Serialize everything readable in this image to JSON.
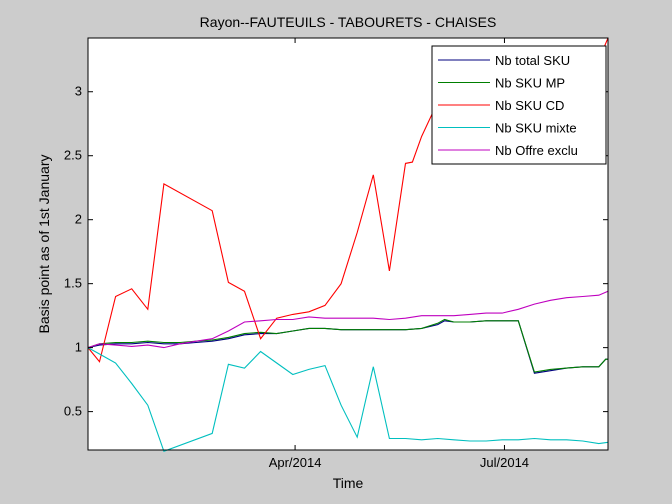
{
  "chart_data": {
    "type": "line",
    "title": "Rayon--FAUTEUILS - TABOURETS - CHAISES",
    "xlabel": "Time",
    "ylabel": "Basis point as of 1st January",
    "xlim": [
      "2014-01-01",
      "2014-08-15"
    ],
    "ylim": [
      0.2,
      3.42
    ],
    "y_ticks": [
      0.5,
      1,
      1.5,
      2,
      2.5,
      3
    ],
    "y_tick_labels": [
      "0.5",
      "1",
      "1.5",
      "2",
      "2.5",
      "3"
    ],
    "x_ticks": [
      "2014-04-01",
      "2014-07-01"
    ],
    "x_tick_labels": [
      "Apr/2014",
      "Jul/2014"
    ],
    "grid": false,
    "legend_position": "top-right",
    "series": [
      {
        "name": "Nb total SKU",
        "color": "#00007f",
        "points": [
          [
            "2014-01-01",
            1.0
          ],
          [
            "2014-01-06",
            1.02
          ],
          [
            "2014-01-13",
            1.03
          ],
          [
            "2014-01-20",
            1.03
          ],
          [
            "2014-01-27",
            1.04
          ],
          [
            "2014-02-03",
            1.03
          ],
          [
            "2014-02-10",
            1.03
          ],
          [
            "2014-02-17",
            1.04
          ],
          [
            "2014-02-24",
            1.05
          ],
          [
            "2014-03-03",
            1.07
          ],
          [
            "2014-03-10",
            1.1
          ],
          [
            "2014-03-17",
            1.11
          ],
          [
            "2014-03-24",
            1.11
          ],
          [
            "2014-03-31",
            1.13
          ],
          [
            "2014-04-07",
            1.15
          ],
          [
            "2014-04-14",
            1.15
          ],
          [
            "2014-04-21",
            1.14
          ],
          [
            "2014-04-28",
            1.14
          ],
          [
            "2014-05-05",
            1.14
          ],
          [
            "2014-05-12",
            1.14
          ],
          [
            "2014-05-19",
            1.14
          ],
          [
            "2014-05-26",
            1.15
          ],
          [
            "2014-06-02",
            1.18
          ],
          [
            "2014-06-05",
            1.21
          ],
          [
            "2014-06-09",
            1.2
          ],
          [
            "2014-06-16",
            1.2
          ],
          [
            "2014-06-23",
            1.21
          ],
          [
            "2014-06-30",
            1.21
          ],
          [
            "2014-07-07",
            1.21
          ],
          [
            "2014-07-14",
            0.8
          ],
          [
            "2014-07-21",
            0.82
          ],
          [
            "2014-07-28",
            0.84
          ],
          [
            "2014-08-04",
            0.85
          ],
          [
            "2014-08-11",
            0.85
          ],
          [
            "2014-08-14",
            0.91
          ],
          [
            "2014-08-15",
            0.91
          ]
        ]
      },
      {
        "name": "Nb SKU MP",
        "color": "#007f00",
        "points": [
          [
            "2014-01-01",
            1.0
          ],
          [
            "2014-01-06",
            1.03
          ],
          [
            "2014-01-13",
            1.04
          ],
          [
            "2014-01-20",
            1.04
          ],
          [
            "2014-01-27",
            1.05
          ],
          [
            "2014-02-03",
            1.04
          ],
          [
            "2014-02-10",
            1.04
          ],
          [
            "2014-02-17",
            1.05
          ],
          [
            "2014-02-24",
            1.06
          ],
          [
            "2014-03-03",
            1.08
          ],
          [
            "2014-03-10",
            1.11
          ],
          [
            "2014-03-17",
            1.12
          ],
          [
            "2014-03-24",
            1.11
          ],
          [
            "2014-03-31",
            1.13
          ],
          [
            "2014-04-07",
            1.15
          ],
          [
            "2014-04-14",
            1.15
          ],
          [
            "2014-04-21",
            1.14
          ],
          [
            "2014-04-28",
            1.14
          ],
          [
            "2014-05-05",
            1.14
          ],
          [
            "2014-05-12",
            1.14
          ],
          [
            "2014-05-19",
            1.14
          ],
          [
            "2014-05-26",
            1.15
          ],
          [
            "2014-06-02",
            1.19
          ],
          [
            "2014-06-05",
            1.22
          ],
          [
            "2014-06-09",
            1.2
          ],
          [
            "2014-06-16",
            1.2
          ],
          [
            "2014-06-23",
            1.21
          ],
          [
            "2014-06-30",
            1.21
          ],
          [
            "2014-07-07",
            1.21
          ],
          [
            "2014-07-14",
            0.81
          ],
          [
            "2014-07-21",
            0.83
          ],
          [
            "2014-07-28",
            0.84
          ],
          [
            "2014-08-04",
            0.85
          ],
          [
            "2014-08-11",
            0.85
          ],
          [
            "2014-08-14",
            0.91
          ],
          [
            "2014-08-15",
            0.91
          ]
        ]
      },
      {
        "name": "Nb SKU CD",
        "color": "#ff0000",
        "points": [
          [
            "2014-01-01",
            1.0
          ],
          [
            "2014-01-06",
            0.89
          ],
          [
            "2014-01-13",
            1.4
          ],
          [
            "2014-01-20",
            1.46
          ],
          [
            "2014-01-27",
            1.3
          ],
          [
            "2014-02-03",
            2.28
          ],
          [
            "2014-02-24",
            2.07
          ],
          [
            "2014-03-03",
            1.51
          ],
          [
            "2014-03-10",
            1.44
          ],
          [
            "2014-03-17",
            1.07
          ],
          [
            "2014-03-24",
            1.23
          ],
          [
            "2014-03-31",
            1.26
          ],
          [
            "2014-04-07",
            1.28
          ],
          [
            "2014-04-14",
            1.33
          ],
          [
            "2014-04-21",
            1.5
          ],
          [
            "2014-04-28",
            1.9
          ],
          [
            "2014-05-05",
            2.35
          ],
          [
            "2014-05-12",
            1.6
          ],
          [
            "2014-05-19",
            2.44
          ],
          [
            "2014-05-22",
            2.45
          ],
          [
            "2014-05-26",
            2.65
          ],
          [
            "2014-06-02",
            2.92
          ],
          [
            "2014-06-09",
            3.08
          ],
          [
            "2014-06-16",
            3.12
          ],
          [
            "2014-06-23",
            3.2
          ],
          [
            "2014-06-30",
            3.26
          ],
          [
            "2014-07-07",
            3.22
          ],
          [
            "2014-07-14",
            3.23
          ],
          [
            "2014-07-21",
            3.22
          ],
          [
            "2014-07-28",
            3.21
          ],
          [
            "2014-08-04",
            3.22
          ],
          [
            "2014-08-11",
            3.25
          ],
          [
            "2014-08-15",
            3.42
          ]
        ]
      },
      {
        "name": "Nb SKU mixte",
        "color": "#00bfbf",
        "points": [
          [
            "2014-01-01",
            1.0
          ],
          [
            "2014-01-06",
            0.95
          ],
          [
            "2014-01-13",
            0.88
          ],
          [
            "2014-01-20",
            0.72
          ],
          [
            "2014-01-27",
            0.55
          ],
          [
            "2014-02-03",
            0.19
          ],
          [
            "2014-02-24",
            0.33
          ],
          [
            "2014-03-03",
            0.87
          ],
          [
            "2014-03-10",
            0.84
          ],
          [
            "2014-03-17",
            0.97
          ],
          [
            "2014-03-24",
            0.88
          ],
          [
            "2014-03-31",
            0.79
          ],
          [
            "2014-04-07",
            0.83
          ],
          [
            "2014-04-14",
            0.86
          ],
          [
            "2014-04-21",
            0.55
          ],
          [
            "2014-04-28",
            0.3
          ],
          [
            "2014-05-05",
            0.85
          ],
          [
            "2014-05-12",
            0.29
          ],
          [
            "2014-05-19",
            0.29
          ],
          [
            "2014-05-26",
            0.28
          ],
          [
            "2014-06-02",
            0.29
          ],
          [
            "2014-06-09",
            0.28
          ],
          [
            "2014-06-16",
            0.27
          ],
          [
            "2014-06-23",
            0.27
          ],
          [
            "2014-06-30",
            0.28
          ],
          [
            "2014-07-07",
            0.28
          ],
          [
            "2014-07-14",
            0.29
          ],
          [
            "2014-07-21",
            0.28
          ],
          [
            "2014-07-28",
            0.28
          ],
          [
            "2014-08-04",
            0.27
          ],
          [
            "2014-08-11",
            0.25
          ],
          [
            "2014-08-15",
            0.26
          ]
        ]
      },
      {
        "name": "Nb Offre exclu",
        "color": "#bf00bf",
        "points": [
          [
            "2014-01-01",
            1.0
          ],
          [
            "2014-01-06",
            1.03
          ],
          [
            "2014-01-13",
            1.02
          ],
          [
            "2014-01-20",
            1.01
          ],
          [
            "2014-01-27",
            1.02
          ],
          [
            "2014-02-03",
            1.0
          ],
          [
            "2014-02-10",
            1.03
          ],
          [
            "2014-02-17",
            1.05
          ],
          [
            "2014-02-24",
            1.07
          ],
          [
            "2014-03-03",
            1.13
          ],
          [
            "2014-03-10",
            1.2
          ],
          [
            "2014-03-17",
            1.21
          ],
          [
            "2014-03-24",
            1.22
          ],
          [
            "2014-03-31",
            1.22
          ],
          [
            "2014-04-07",
            1.24
          ],
          [
            "2014-04-14",
            1.23
          ],
          [
            "2014-04-21",
            1.23
          ],
          [
            "2014-04-28",
            1.23
          ],
          [
            "2014-05-05",
            1.23
          ],
          [
            "2014-05-12",
            1.22
          ],
          [
            "2014-05-19",
            1.23
          ],
          [
            "2014-05-26",
            1.25
          ],
          [
            "2014-06-02",
            1.25
          ],
          [
            "2014-06-09",
            1.25
          ],
          [
            "2014-06-16",
            1.26
          ],
          [
            "2014-06-23",
            1.27
          ],
          [
            "2014-06-30",
            1.27
          ],
          [
            "2014-07-07",
            1.3
          ],
          [
            "2014-07-14",
            1.34
          ],
          [
            "2014-07-21",
            1.37
          ],
          [
            "2014-07-28",
            1.39
          ],
          [
            "2014-08-04",
            1.4
          ],
          [
            "2014-08-11",
            1.41
          ],
          [
            "2014-08-15",
            1.44
          ]
        ]
      }
    ]
  }
}
